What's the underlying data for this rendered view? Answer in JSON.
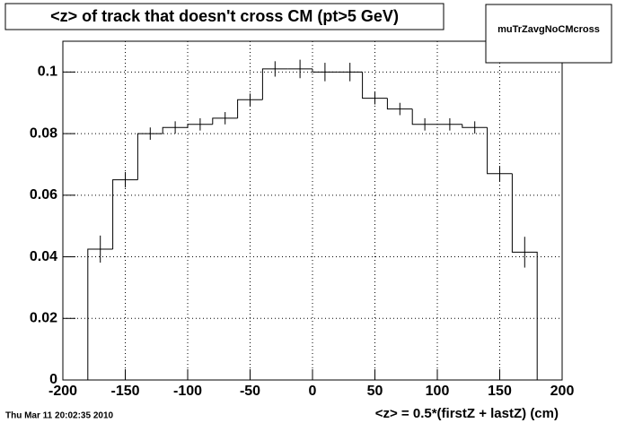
{
  "chart_data": {
    "type": "histogram",
    "title": "<z> of track that doesn't cross CM (pt>5 GeV)",
    "stats_title": "muTrZavgNoCMcross",
    "x_label": "<z> = 0.5*(firstZ + lastZ) (cm)",
    "timestamp": "Thu Mar 11 20:02:35 2010",
    "bins": [
      -180,
      -160,
      -140,
      -120,
      -100,
      -80,
      -60,
      -40,
      -20,
      0,
      20,
      40,
      60,
      80,
      100,
      120,
      140,
      160,
      180
    ],
    "counts": [
      0.0425,
      0.065,
      0.08,
      0.082,
      0.083,
      0.085,
      0.091,
      0.101,
      0.101,
      0.1,
      0.1,
      0.0915,
      0.088,
      0.083,
      0.083,
      0.082,
      0.067,
      0.0415
    ],
    "errors": [
      0.0044,
      0.0025,
      0.002,
      0.002,
      0.002,
      0.002,
      0.002,
      0.0025,
      0.003,
      0.003,
      0.003,
      0.002,
      0.002,
      0.002,
      0.002,
      0.002,
      0.0025,
      0.005
    ],
    "color": "#000000",
    "xlim": [
      -200,
      200
    ],
    "xticks": [
      -200,
      -150,
      -100,
      -50,
      0,
      50,
      100,
      150,
      200
    ],
    "ylim": [
      0,
      0.11
    ],
    "yticks": [
      0,
      0.02,
      0.04,
      0.06,
      0.08,
      0.1
    ],
    "grid": true
  }
}
